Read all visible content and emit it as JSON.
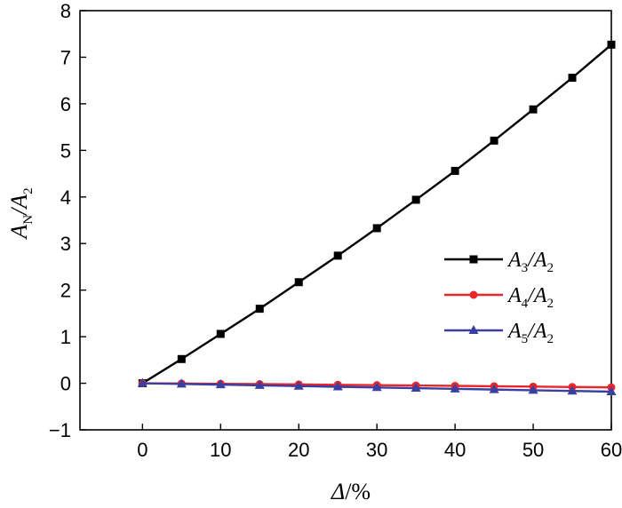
{
  "chart_data": {
    "type": "line",
    "xlabel": "Δ/%",
    "ylabel": "AN/A2",
    "x": [
      0,
      5,
      10,
      15,
      20,
      25,
      30,
      35,
      40,
      45,
      50,
      55,
      60
    ],
    "xlim": [
      -8,
      60
    ],
    "ylim": [
      -1,
      8
    ],
    "xticks": [
      0,
      10,
      20,
      30,
      40,
      50,
      60
    ],
    "yticks": [
      -1,
      0,
      1,
      2,
      3,
      4,
      5,
      6,
      7,
      8
    ],
    "grid": false,
    "legend_position": "center-right",
    "series": [
      {
        "name": "A3/A2",
        "name_main": "A",
        "name_sub": "3",
        "name_div": "/A",
        "name_sub2": "2",
        "color": "#000000",
        "marker": "square",
        "values": [
          0.0,
          0.52,
          1.06,
          1.6,
          2.17,
          2.74,
          3.33,
          3.94,
          4.56,
          5.21,
          5.88,
          6.56,
          7.27
        ]
      },
      {
        "name": "A4/A2",
        "name_main": "A",
        "name_sub": "4",
        "name_div": "/A",
        "name_sub2": "2",
        "color": "#e8262b",
        "marker": "circle",
        "values": [
          0.0,
          -0.005,
          -0.012,
          -0.018,
          -0.025,
          -0.033,
          -0.04,
          -0.048,
          -0.056,
          -0.064,
          -0.072,
          -0.08,
          -0.088
        ]
      },
      {
        "name": "A5/A2",
        "name_main": "A",
        "name_sub": "5",
        "name_div": "/A",
        "name_sub2": "2",
        "color": "#3b3fa0",
        "marker": "triangle",
        "values": [
          0.0,
          -0.015,
          -0.03,
          -0.045,
          -0.06,
          -0.075,
          -0.09,
          -0.105,
          -0.12,
          -0.135,
          -0.15,
          -0.165,
          -0.18
        ]
      }
    ],
    "ylabel_parts": {
      "main": "A",
      "sub": "N",
      "div": "/A",
      "sub2": "2"
    },
    "xlabel_parts": {
      "main": "Δ",
      "unit": "/%"
    }
  }
}
